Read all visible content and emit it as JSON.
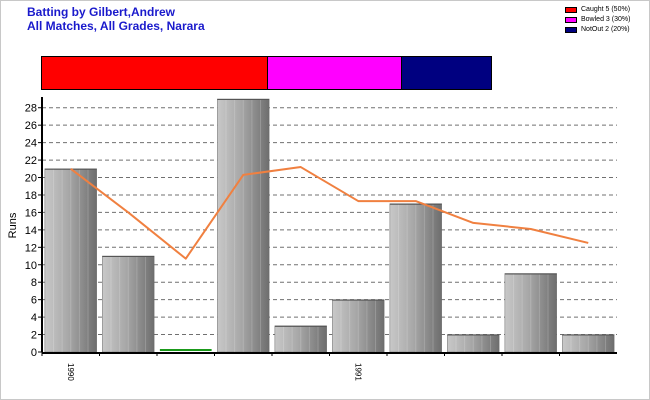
{
  "header": {
    "title_line1": "Batting by Gilbert,Andrew",
    "title_line2": "All Matches, All Grades, Narara"
  },
  "legend": [
    {
      "label": "Caught 5 (50%)",
      "color": "#ff0000"
    },
    {
      "label": "Bowled 3 (30%)",
      "color": "#ff00ff"
    },
    {
      "label": "NotOut 2 (20%)",
      "color": "#000080"
    }
  ],
  "dismissal_strip": [
    {
      "name": "Caught",
      "value": 5,
      "color": "#ff0000"
    },
    {
      "name": "Bowled",
      "value": 3,
      "color": "#ff00ff"
    },
    {
      "name": "NotOut",
      "value": 2,
      "color": "#000080"
    }
  ],
  "chart_data": {
    "type": "bar",
    "ylabel": "Runs",
    "ylim": [
      0,
      29
    ],
    "yticks": [
      0,
      2,
      4,
      6,
      8,
      10,
      12,
      14,
      16,
      18,
      20,
      22,
      24,
      26,
      28
    ],
    "grid": true,
    "x_tick_labels": [
      {
        "index": 0,
        "label": "1990"
      },
      {
        "index": 5,
        "label": "1991"
      }
    ],
    "series": [
      {
        "type": "bar",
        "values": [
          21,
          11,
          0,
          29,
          3,
          6,
          17,
          2,
          9,
          2
        ]
      },
      {
        "type": "line",
        "color": "#f08040",
        "values": [
          21,
          16,
          10.7,
          20.3,
          21.2,
          17.3,
          17.3,
          14.8,
          14.1,
          12.5
        ]
      }
    ]
  }
}
